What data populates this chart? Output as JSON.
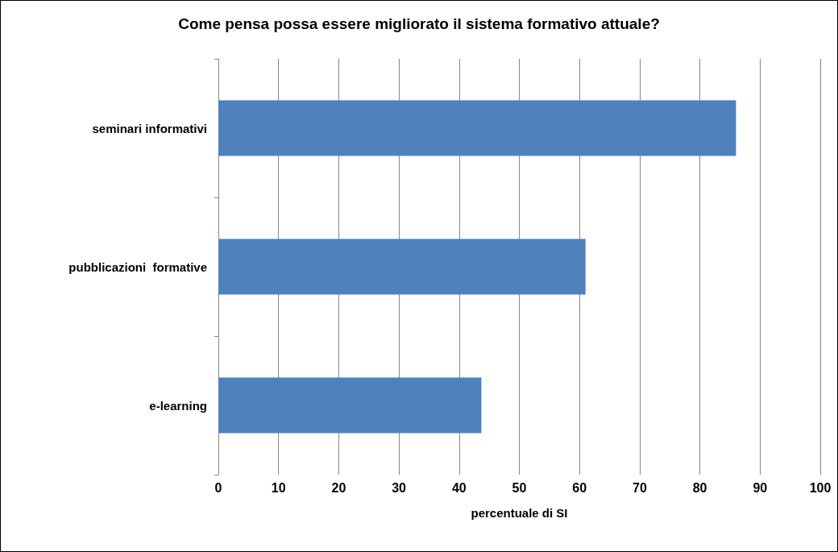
{
  "chart_data": {
    "type": "bar",
    "orientation": "horizontal",
    "title": "Come pensa possa essere migliorato il sistema formativo attuale?",
    "xlabel": "percentuale di SI",
    "categories": [
      "seminari informativi",
      "pubblicazioni  formative",
      "e-learning"
    ],
    "values": [
      86,
      61,
      43.7
    ],
    "color": "#4f81bd",
    "xlim": [
      0,
      100
    ],
    "xticks": [
      0,
      10,
      20,
      30,
      40,
      50,
      60,
      70,
      80,
      90,
      100
    ],
    "grid": "x"
  }
}
